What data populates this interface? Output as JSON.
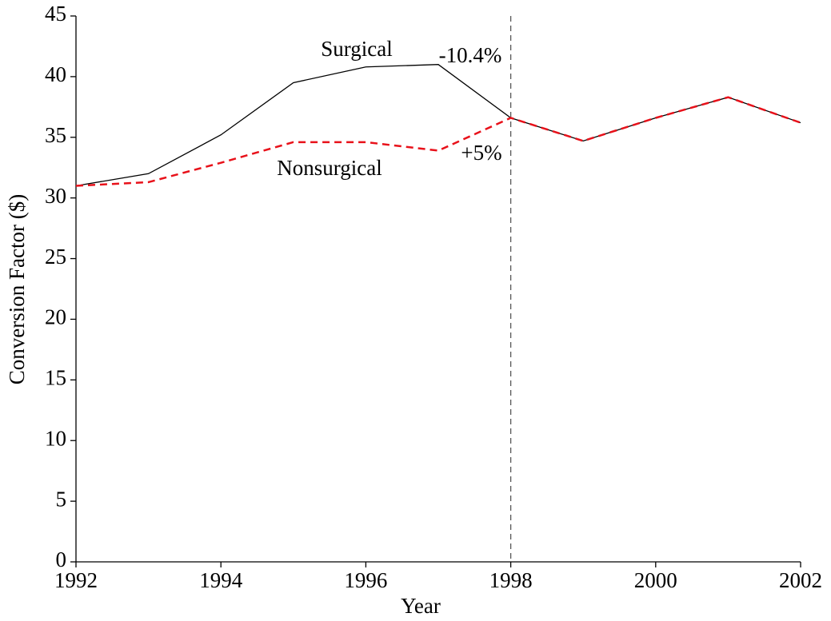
{
  "chart_data": {
    "type": "line",
    "xlabel": "Year",
    "ylabel": "Conversion Factor ($)",
    "x": [
      1992,
      1993,
      1994,
      1995,
      1996,
      1997,
      1998,
      1999,
      2000,
      2001,
      2002
    ],
    "series": [
      {
        "name": "Surgical",
        "color": "#000000",
        "dash": false,
        "values": [
          31.0,
          32.0,
          35.2,
          39.5,
          40.8,
          41.0,
          36.6,
          34.7,
          36.6,
          38.3,
          36.2
        ]
      },
      {
        "name": "Nonsurgical",
        "color": "#e8111a",
        "dash": true,
        "values": [
          31.0,
          31.3,
          32.9,
          34.6,
          34.6,
          33.9,
          36.6,
          34.7,
          36.6,
          38.3,
          36.2
        ]
      }
    ],
    "annotations": [
      {
        "text": "-10.4%",
        "color": "#000000"
      },
      {
        "text": "+5%",
        "color": "#e8111a"
      }
    ],
    "vline": 1998,
    "xlim": [
      1992,
      2002
    ],
    "xticks": [
      1992,
      1994,
      1996,
      1998,
      2000,
      2002
    ],
    "ylim": [
      0,
      45
    ],
    "yticks": [
      0,
      5,
      10,
      15,
      20,
      25,
      30,
      35,
      40,
      45
    ],
    "grid": false
  }
}
